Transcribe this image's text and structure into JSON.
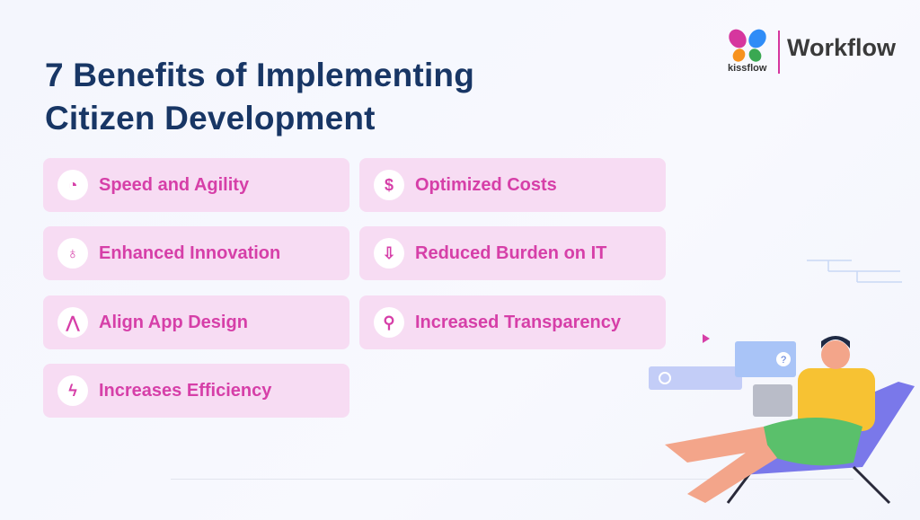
{
  "title_line1": "7 Benefits of Implementing",
  "title_line2": "Citizen Development",
  "logo": {
    "brand": "kissflow",
    "product": "Workflow"
  },
  "colors": {
    "title": "#183665",
    "accent": "#d63fa8",
    "card_bg": "#f7dcf3"
  },
  "benefits": [
    {
      "label": "Speed and Agility",
      "icon": "speedometer-icon",
      "glyph": "◔"
    },
    {
      "label": "Optimized Costs",
      "icon": "dollar-icon",
      "glyph": "$"
    },
    {
      "label": "Enhanced Innovation",
      "icon": "lightbulb-icon",
      "glyph": "♁"
    },
    {
      "label": "Reduced Burden on IT",
      "icon": "download-box-icon",
      "glyph": "⇩"
    },
    {
      "label": "Align App Design",
      "icon": "compass-icon",
      "glyph": "⋀"
    },
    {
      "label": "Increased Transparency",
      "icon": "pin-icon",
      "glyph": "⚲"
    },
    {
      "label": "Increases Efficiency",
      "icon": "lightning-icon",
      "glyph": "ϟ"
    }
  ]
}
